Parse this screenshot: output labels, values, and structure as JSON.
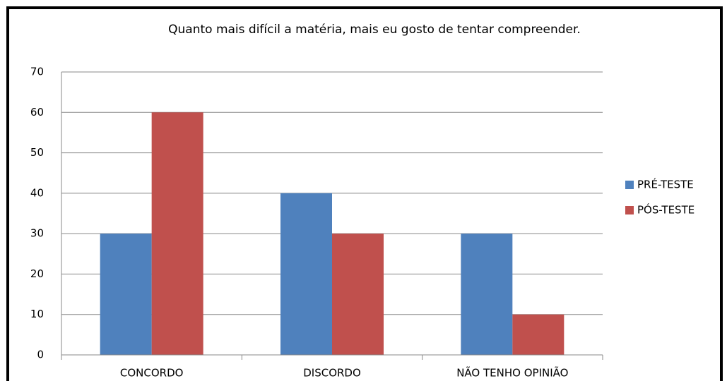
{
  "chart_data": {
    "type": "bar",
    "title": "Quanto mais difícil a matéria, mais eu gosto de tentar compreender.",
    "categories": [
      "CONCORDO",
      "DISCORDO",
      "NÃO TENHO OPINIÃO"
    ],
    "series": [
      {
        "name": "PRÉ-TESTE",
        "color": "#4f81bd",
        "values": [
          30,
          40,
          30
        ]
      },
      {
        "name": "PÓS-TESTE",
        "color": "#c0504d",
        "values": [
          60,
          30,
          10
        ]
      }
    ],
    "ylim": [
      0,
      70
    ],
    "yticks": [
      0,
      10,
      20,
      30,
      40,
      50,
      60,
      70
    ],
    "grid": true,
    "legend": "right"
  }
}
